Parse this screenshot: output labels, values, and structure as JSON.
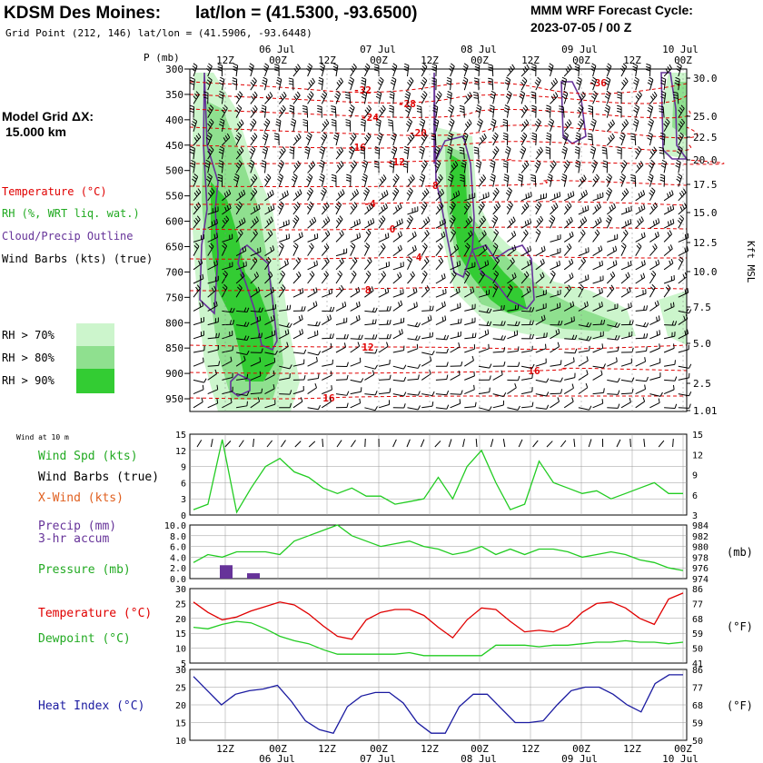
{
  "header": {
    "station": "KDSM Des Moines:",
    "latlon": "lat/lon = (41.5300, -93.6500)",
    "grid_point": "Grid Point (212, 146) lat/lon = (41.5906, -93.6448)",
    "cycle_title": "MMM WRF Forecast Cycle:",
    "cycle_value": "2023-07-05 / 00  Z",
    "model_grid_label": "Model Grid ΔX:",
    "model_grid_value": "15.000 km"
  },
  "time_axis": {
    "hours": [
      "12Z",
      "00Z",
      "12Z",
      "00Z",
      "12Z",
      "00Z",
      "12Z",
      "00Z",
      "12Z",
      "00Z"
    ],
    "dates": [
      "06 Jul",
      "07 Jul",
      "08 Jul",
      "09 Jul",
      "10 Jul"
    ]
  },
  "sounding": {
    "p_label": "P (mb)",
    "pressure_levels": [
      300,
      350,
      400,
      450,
      500,
      550,
      600,
      650,
      700,
      750,
      800,
      850,
      900,
      950
    ],
    "height_label": "Kft MSL",
    "height_ticks": [
      "30.0",
      "25.0",
      "22.5",
      "20.0",
      "17.5",
      "15.0",
      "12.5",
      "10.0",
      "7.5",
      "5.0",
      "2.5",
      "1.01"
    ],
    "legend": {
      "temperature": "Temperature (°C)",
      "rh": "RH (%, WRT liq. wat.)",
      "cloud": "Cloud/Precip Outline",
      "wind": "Wind Barbs (kts) (true)",
      "rh70": "RH > 70%",
      "rh80": "RH > 80%",
      "rh90": "RH > 90%"
    },
    "temp_labels": [
      "-32",
      "-28",
      "-24",
      "-20",
      "-16",
      "-12",
      "-8",
      "-4",
      "0",
      "4",
      "8",
      "12",
      "16",
      "16",
      "-36"
    ],
    "colors": {
      "temp": "#e00000",
      "rh70": "#ccf5cc",
      "rh80": "#8fe08f",
      "rh90": "#33cc33",
      "cloud": "#663399"
    }
  },
  "chart_data": [
    {
      "type": "line",
      "title": "Wind at 10 m",
      "series": [
        {
          "name": "Wind Spd (kts)",
          "values": [
            1,
            2,
            14,
            0.5,
            5,
            9,
            10.5,
            8,
            7,
            5,
            4,
            5,
            3.5,
            3.5,
            2,
            2.5,
            3,
            7,
            3,
            9,
            12,
            6,
            1,
            2,
            10,
            6,
            5,
            4,
            4.5,
            3,
            4,
            5,
            6,
            4,
            4
          ]
        },
        {
          "name": "Wind Barbs (true)",
          "values": []
        },
        {
          "name": "X-Wind (kts)",
          "values": []
        }
      ],
      "x": "3-hourly 2023-07-05 06Z to 2023-07-10 00Z",
      "ylim": [
        0,
        15
      ],
      "left_ticks": [
        "15",
        "12",
        "9",
        "6",
        "3",
        "0"
      ],
      "right_ticks": [
        "15",
        "12",
        "9",
        "6",
        "3"
      ]
    },
    {
      "type": "bar",
      "title": "Precip (mm) 3-hr accum",
      "precip_label": "Precip (mm)",
      "precip_label2": "3-hr accum",
      "pressure_label": "Pressure (mb)",
      "precip_values": [
        0,
        0,
        0,
        2.5,
        0,
        1,
        0
      ],
      "ylim": [
        0,
        10
      ],
      "left_ticks": [
        "10.0",
        "8.0",
        "6.0",
        "4.0",
        "2.0",
        "0.0"
      ],
      "pressure_values": [
        977,
        978.5,
        978,
        979,
        979,
        979,
        978.5,
        981,
        982,
        983,
        984,
        982,
        981,
        980,
        980.5,
        981,
        980,
        979.5,
        978.5,
        979,
        980,
        978.5,
        979.5,
        978.5,
        979.5,
        979.5,
        979,
        978,
        978.5,
        979,
        978.5,
        977.5,
        977,
        976,
        975.5
      ],
      "pressure_ylim": [
        974,
        984
      ],
      "right_ticks": [
        "984",
        "982",
        "980",
        "978",
        "976",
        "974"
      ],
      "right_unit": "(mb)"
    },
    {
      "type": "line",
      "title": "Temperature / Dewpoint",
      "temp_label": "Temperature (°C)",
      "dew_label": "Dewpoint (°C)",
      "series": [
        {
          "name": "Temperature (°C)",
          "values": [
            25.5,
            22,
            19.5,
            20.5,
            22.5,
            24,
            25.5,
            24.5,
            21.5,
            17.5,
            14,
            13,
            19.5,
            22,
            23,
            23,
            21,
            17,
            13.5,
            19.5,
            23.5,
            23,
            19,
            15.5,
            16,
            15.5,
            17.5,
            22,
            25,
            25.5,
            23.5,
            20,
            18,
            26.5,
            28.5
          ]
        },
        {
          "name": "Dewpoint (°C)",
          "values": [
            17,
            16.5,
            18,
            19,
            18.5,
            16.5,
            14,
            12.5,
            11.5,
            9.5,
            8,
            8,
            8,
            8,
            8,
            8.5,
            7.5,
            7.5,
            7.5,
            7.5,
            7.5,
            11,
            11,
            11,
            10.5,
            11,
            11,
            11.5,
            12,
            12,
            12.5,
            12,
            12,
            11.5,
            12
          ]
        }
      ],
      "ylim": [
        5,
        30
      ],
      "left_ticks": [
        "30",
        "25",
        "20",
        "15",
        "10",
        "5"
      ],
      "right_ticks": [
        "86",
        "77",
        "68",
        "59",
        "50",
        "41"
      ],
      "right_unit": "(°F)"
    },
    {
      "type": "line",
      "title": "Heat Index",
      "series": [
        {
          "name": "Heat Index (°C)",
          "values": [
            28,
            24,
            20,
            23,
            24,
            24.5,
            25.5,
            21,
            15.5,
            13,
            12,
            19.5,
            22.5,
            23.5,
            23.5,
            20.5,
            15,
            12,
            12,
            19.5,
            23,
            23,
            19,
            15,
            15,
            15.5,
            20,
            24,
            25,
            25,
            23,
            20,
            18,
            26,
            28.5,
            28.5
          ]
        }
      ],
      "ylim": [
        10,
        30
      ],
      "left_ticks": [
        "30",
        "25",
        "20",
        "15",
        "10"
      ],
      "right_ticks": [
        "86",
        "77",
        "68",
        "59",
        "50"
      ],
      "right_unit": "(°F)"
    }
  ],
  "panel_labels": {
    "wind10": "Wind at 10 m",
    "wind_spd": "Wind Spd (kts)",
    "wind_barbs": "Wind Barbs (true)",
    "xwind": "X-Wind (kts)",
    "heat_index": "Heat Index (°C)"
  }
}
